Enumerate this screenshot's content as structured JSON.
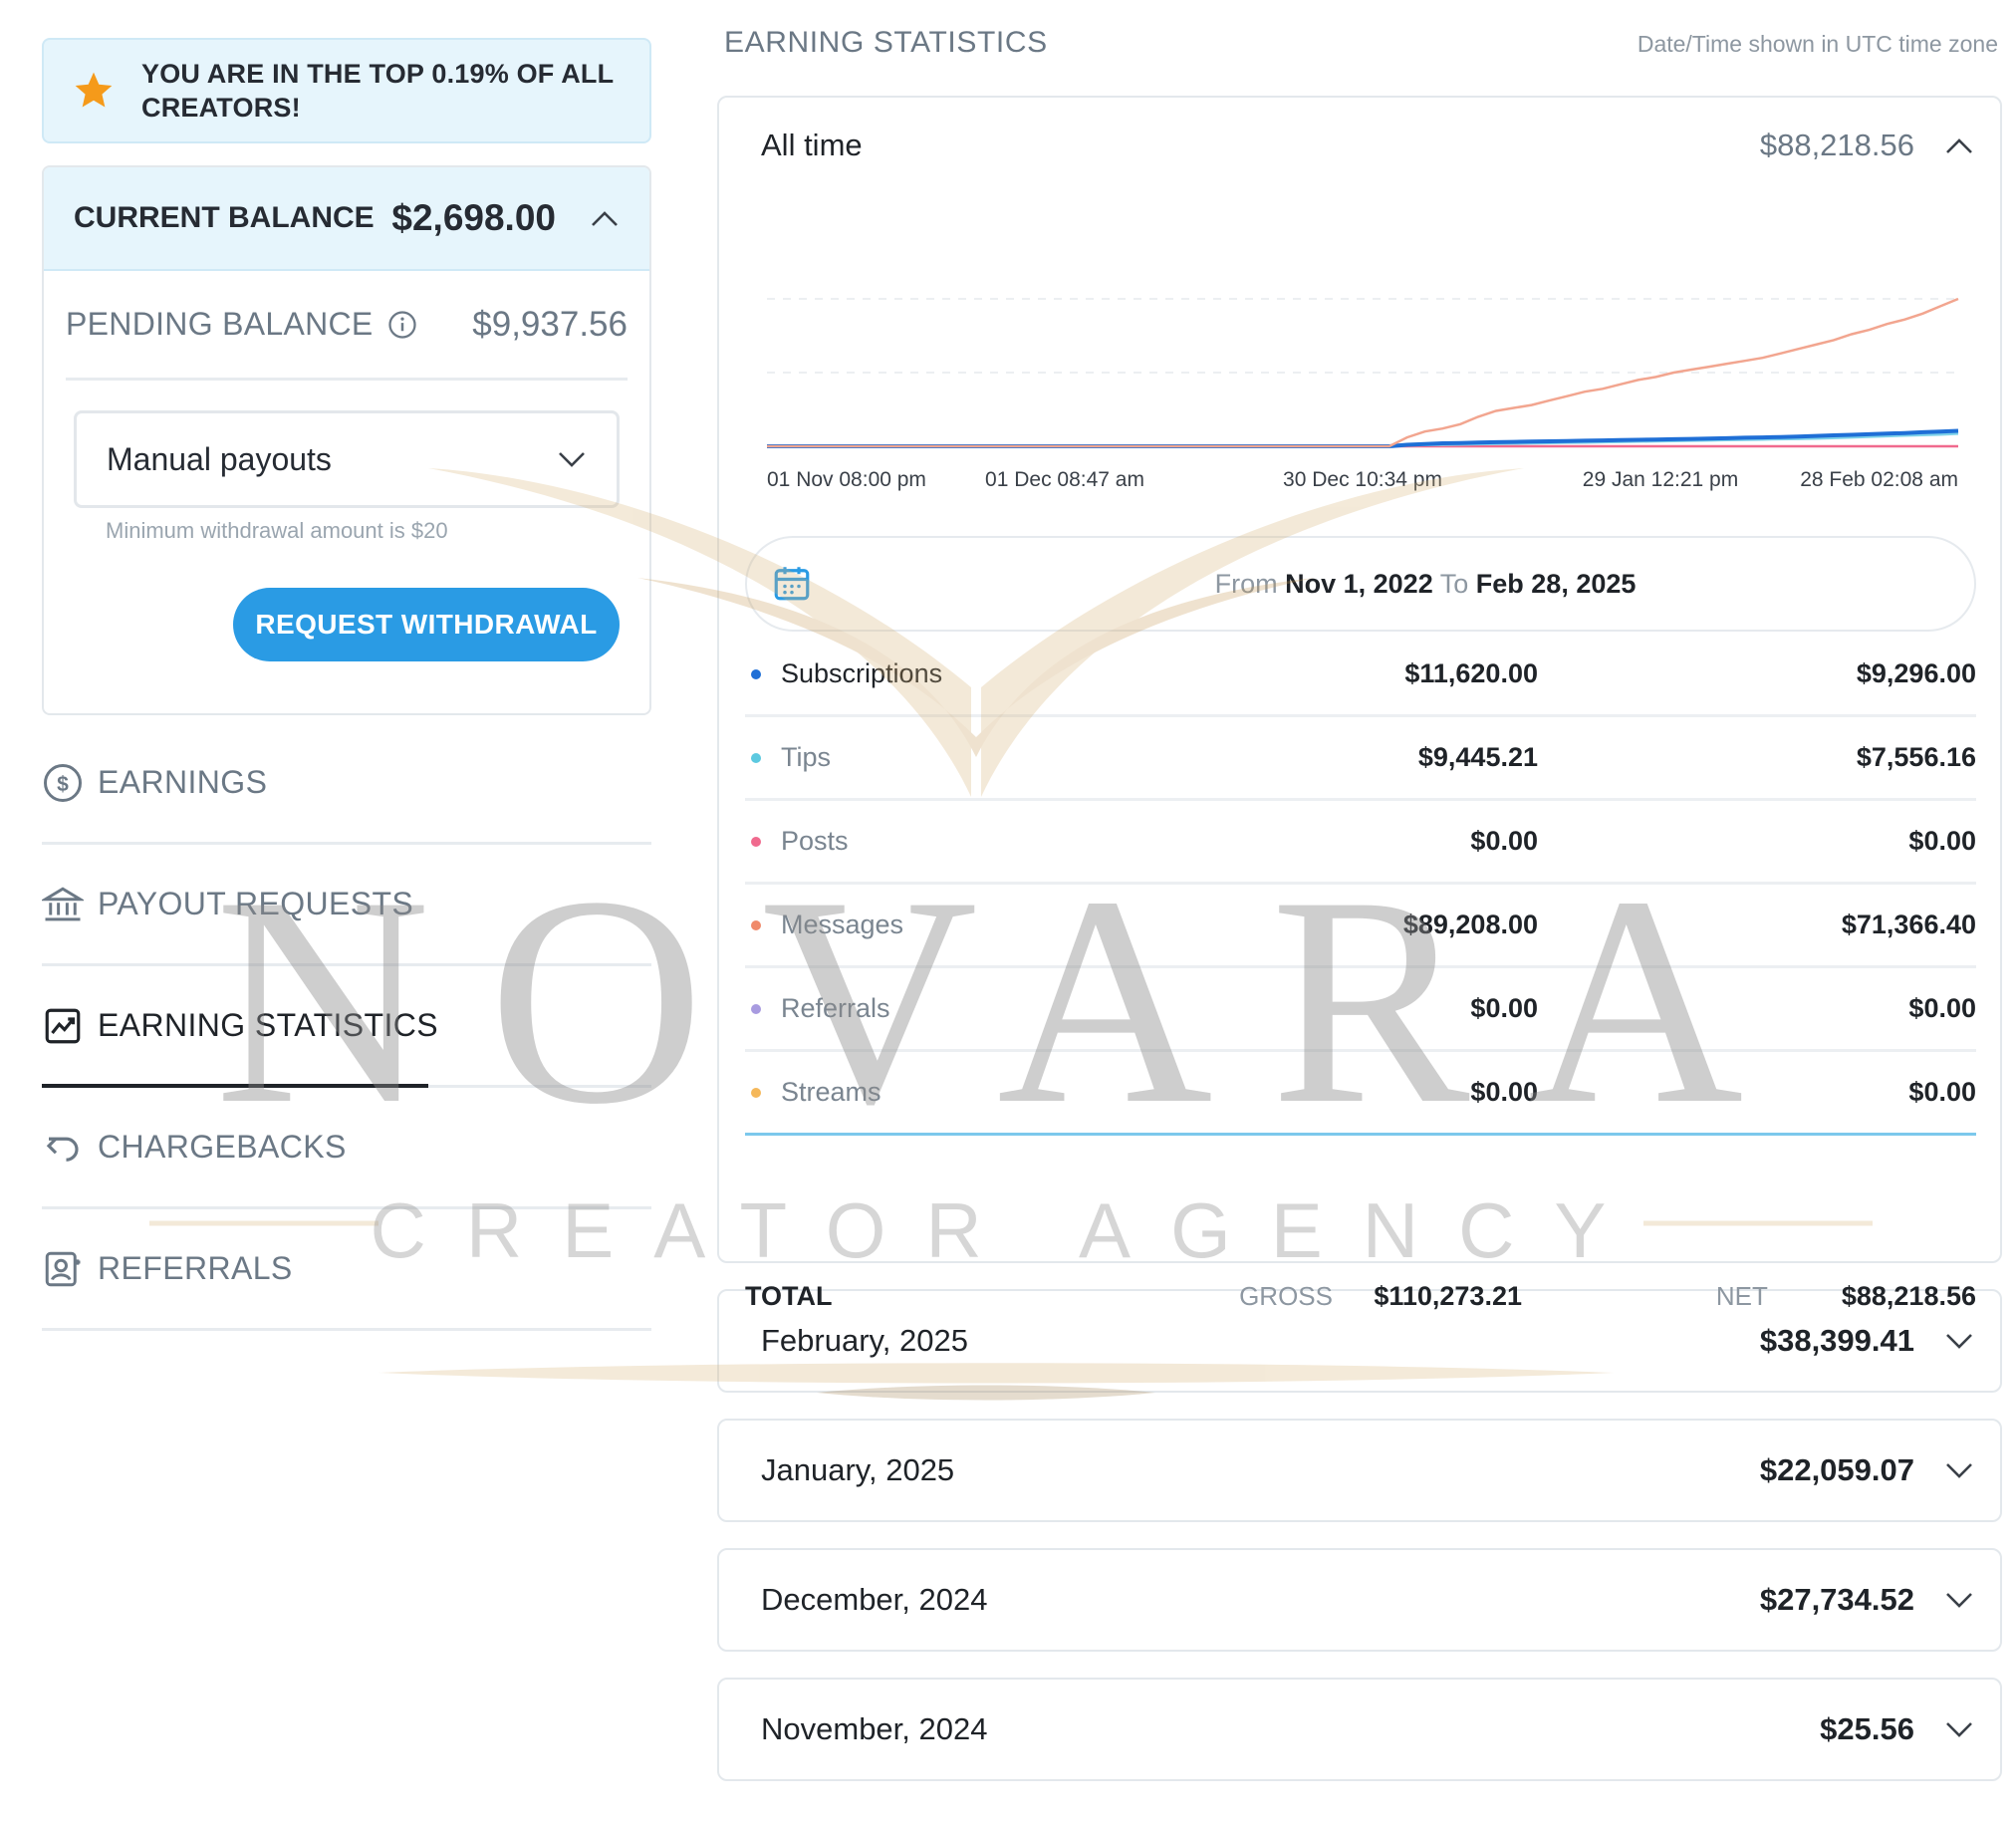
{
  "banner": {
    "text_line1": "YOU ARE IN THE TOP 0.19% OF ALL",
    "text_line2": "CREATORS!",
    "icon": "star-icon",
    "icon_color": "#f59a1a"
  },
  "balance": {
    "current_label": "CURRENT BALANCE",
    "current_value": "$2,698.00",
    "pending_label": "PENDING BALANCE",
    "pending_value": "$9,937.56",
    "payout_mode": "Manual payouts",
    "min_note": "Minimum withdrawal amount is $20",
    "withdraw_label": "REQUEST WITHDRAWAL"
  },
  "nav": [
    {
      "label": "EARNINGS",
      "icon": "dollar-circle-icon",
      "active": false
    },
    {
      "label": "PAYOUT REQUESTS",
      "icon": "bank-icon",
      "active": false
    },
    {
      "label": "EARNING STATISTICS",
      "icon": "chart-icon",
      "active": true
    },
    {
      "label": "CHARGEBACKS",
      "icon": "undo-icon",
      "active": false
    },
    {
      "label": "REFERRALS",
      "icon": "referral-icon",
      "active": false
    }
  ],
  "stats": {
    "title": "EARNING STATISTICS",
    "tz_note": "Date/Time shown in UTC time zone",
    "period": "All time",
    "period_total": "$88,218.56",
    "range": {
      "from_label": "From",
      "from": "Nov 1, 2022",
      "to_label": "To",
      "to": "Feb 28, 2025"
    },
    "rows": [
      {
        "name": "Subscriptions",
        "gross": "$11,620.00",
        "net": "$9,296.00",
        "color": "#1f6fd6"
      },
      {
        "name": "Tips",
        "gross": "$9,445.21",
        "net": "$7,556.16",
        "color": "#5cc9e0"
      },
      {
        "name": "Posts",
        "gross": "$0.00",
        "net": "$0.00",
        "color": "#f06a8e"
      },
      {
        "name": "Messages",
        "gross": "$89,208.00",
        "net": "$71,366.40",
        "color": "#f08a6a"
      },
      {
        "name": "Referrals",
        "gross": "$0.00",
        "net": "$0.00",
        "color": "#a89be0"
      },
      {
        "name": "Streams",
        "gross": "$0.00",
        "net": "$0.00",
        "color": "#f5b85a"
      }
    ],
    "totals": {
      "label": "TOTAL",
      "gross_label": "GROSS",
      "gross": "$110,273.21",
      "net_label": "NET",
      "net": "$88,218.56"
    }
  },
  "months": [
    {
      "label": "February, 2025",
      "value": "$38,399.41"
    },
    {
      "label": "January, 2025",
      "value": "$22,059.07"
    },
    {
      "label": "December, 2024",
      "value": "$27,734.52"
    },
    {
      "label": "November, 2024",
      "value": "$25.56"
    }
  ],
  "watermark": {
    "brand": "NOVARA",
    "tagline": "CREATOR AGENCY"
  },
  "chart_data": {
    "type": "line",
    "x_tick_labels": [
      "01 Nov 08:00 pm",
      "01 Dec 08:47 am",
      "30 Dec 10:34 pm",
      "29 Jan 12:21 pm",
      "28 Feb 02:08 am"
    ],
    "grid": true,
    "series": [
      {
        "name": "Messages",
        "color": "#f2a58f",
        "values": [
          0,
          0,
          0,
          0,
          0,
          0,
          0,
          0,
          0,
          0,
          0,
          0,
          0,
          0,
          0,
          0,
          0,
          0,
          0,
          0,
          0,
          0,
          0,
          0,
          0,
          0,
          0,
          0,
          0,
          0,
          0,
          0,
          0,
          0,
          0,
          0,
          0.06,
          0.1,
          0.12,
          0.15,
          0.2,
          0.24,
          0.26,
          0.28,
          0.31,
          0.34,
          0.37,
          0.39,
          0.42,
          0.45,
          0.47,
          0.5,
          0.52,
          0.54,
          0.56,
          0.58,
          0.6,
          0.63,
          0.66,
          0.69,
          0.72,
          0.76,
          0.79,
          0.83,
          0.86,
          0.9,
          0.95,
          1.0
        ]
      },
      {
        "name": "Subscriptions",
        "color": "#1f6fd6",
        "values": [
          0,
          0,
          0,
          0,
          0,
          0,
          0,
          0,
          0,
          0,
          0,
          0,
          0,
          0,
          0,
          0,
          0,
          0,
          0,
          0,
          0,
          0,
          0,
          0,
          0,
          0,
          0,
          0,
          0,
          0,
          0,
          0,
          0,
          0,
          0,
          0,
          0.01,
          0.015,
          0.02,
          0.022,
          0.025,
          0.028,
          0.03,
          0.032,
          0.034,
          0.036,
          0.038,
          0.04,
          0.042,
          0.044,
          0.046,
          0.048,
          0.05,
          0.052,
          0.055,
          0.058,
          0.06,
          0.063,
          0.066,
          0.07,
          0.074,
          0.078,
          0.082,
          0.086,
          0.09,
          0.095,
          0.1,
          0.105
        ]
      },
      {
        "name": "Tips",
        "color": "#7fd3ea",
        "values": [
          0,
          0,
          0,
          0,
          0,
          0,
          0,
          0,
          0,
          0,
          0,
          0,
          0,
          0,
          0,
          0,
          0,
          0,
          0,
          0,
          0,
          0,
          0,
          0,
          0,
          0,
          0,
          0,
          0,
          0,
          0,
          0,
          0,
          0,
          0,
          0,
          0.005,
          0.008,
          0.01,
          0.012,
          0.014,
          0.016,
          0.018,
          0.02,
          0.022,
          0.024,
          0.026,
          0.028,
          0.03,
          0.032,
          0.034,
          0.036,
          0.038,
          0.04,
          0.042,
          0.044,
          0.046,
          0.048,
          0.05,
          0.053,
          0.056,
          0.06,
          0.064,
          0.068,
          0.072,
          0.076,
          0.08,
          0.085
        ]
      },
      {
        "name": "Posts",
        "color": "#f06a8e",
        "values": [
          0,
          0,
          0,
          0,
          0,
          0,
          0,
          0,
          0,
          0,
          0,
          0,
          0,
          0,
          0,
          0,
          0,
          0,
          0,
          0,
          0,
          0,
          0,
          0,
          0,
          0,
          0,
          0,
          0,
          0,
          0,
          0,
          0,
          0,
          0,
          0,
          0,
          0,
          0,
          0,
          0,
          0,
          0,
          0,
          0,
          0,
          0,
          0,
          0,
          0,
          0,
          0,
          0,
          0,
          0,
          0,
          0,
          0,
          0,
          0,
          0,
          0,
          0,
          0,
          0,
          0,
          0,
          0
        ]
      }
    ]
  }
}
